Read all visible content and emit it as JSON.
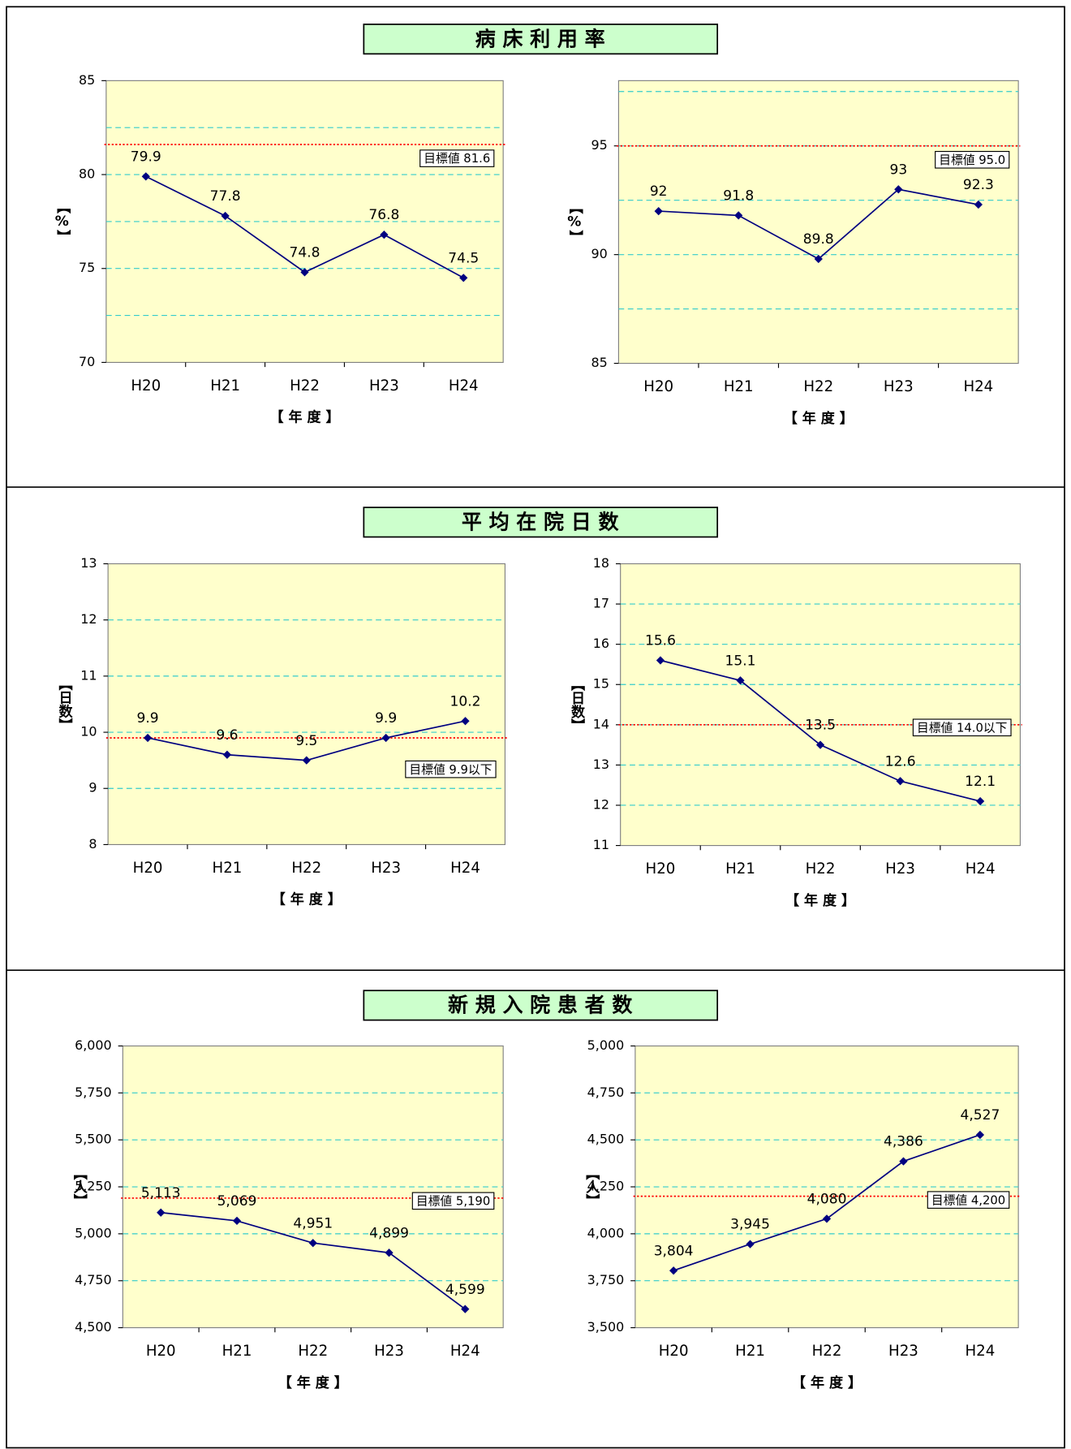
{
  "section_titles": [
    "病 床 利 用 率",
    "平 均 在 院 日 数",
    "新 規 入 院 患 者 数"
  ],
  "chart_data": [
    {
      "type": "line",
      "y_label": "【%】",
      "x_label": "【 年 度 】",
      "categories": [
        "H20",
        "H21",
        "H22",
        "H23",
        "H24"
      ],
      "values": [
        79.9,
        77.8,
        74.8,
        76.8,
        74.5
      ],
      "color": "#000080",
      "ylim": [
        70,
        85
      ],
      "yticks": [
        70,
        75,
        80,
        85
      ],
      "gridlines": [
        72.5,
        75,
        77.5,
        80,
        82.5
      ],
      "target": {
        "value": 81.6,
        "label": "目標値 81.6"
      }
    },
    {
      "type": "line",
      "y_label": "【%】",
      "x_label": "【 年 度 】",
      "categories": [
        "H20",
        "H21",
        "H22",
        "H23",
        "H24"
      ],
      "values": [
        92,
        91.8,
        89.8,
        93,
        92.3
      ],
      "color": "#000080",
      "ylim": [
        85,
        98
      ],
      "yticks": [
        85,
        90,
        95
      ],
      "gridlines": [
        87.5,
        90,
        92.5,
        95,
        97.5
      ],
      "target": {
        "value": 95.0,
        "label": "目標値 95.0"
      }
    },
    {
      "type": "line",
      "y_label": "【日数】",
      "x_label": "【 年 度 】",
      "categories": [
        "H20",
        "H21",
        "H22",
        "H23",
        "H24"
      ],
      "values": [
        9.9,
        9.6,
        9.5,
        9.9,
        10.2
      ],
      "color": "#000080",
      "ylim": [
        8,
        13
      ],
      "yticks": [
        8,
        9,
        10,
        11,
        12,
        13
      ],
      "gridlines": [
        9,
        10,
        11,
        12
      ],
      "target": {
        "value": 9.9,
        "label": "目標値 9.9以下"
      }
    },
    {
      "type": "line",
      "y_label": "【日数】",
      "x_label": "【 年 度 】",
      "categories": [
        "H20",
        "H21",
        "H22",
        "H23",
        "H24"
      ],
      "values": [
        15.6,
        15.1,
        13.5,
        12.6,
        12.1
      ],
      "color": "#000080",
      "ylim": [
        11,
        18
      ],
      "yticks": [
        11,
        12,
        13,
        14,
        15,
        16,
        17,
        18
      ],
      "gridlines": [
        12,
        13,
        14,
        15,
        16,
        17
      ],
      "target": {
        "value": 14.0,
        "label": "目標値 14.0以下"
      }
    },
    {
      "type": "line",
      "y_label": "【人】",
      "x_label": "【 年 度 】",
      "categories": [
        "H20",
        "H21",
        "H22",
        "H23",
        "H24"
      ],
      "values": [
        5113,
        5069,
        4951,
        4899,
        4599
      ],
      "value_labels": [
        "5,113",
        "5,069",
        "4,951",
        "4,899",
        "4,599"
      ],
      "color": "#000080",
      "ylim": [
        4500,
        6000
      ],
      "yticks": [
        {
          "value": 4500,
          "label": "4,500"
        },
        {
          "value": 4750,
          "label": "4,750"
        },
        {
          "value": 5000,
          "label": "5,000"
        },
        {
          "value": 5250,
          "label": "5,250"
        },
        {
          "value": 5500,
          "label": "5,500"
        },
        {
          "value": 5750,
          "label": "5,750"
        },
        {
          "value": 6000,
          "label": "6,000"
        }
      ],
      "gridlines": [
        4750,
        5000,
        5250,
        5500,
        5750
      ],
      "target": {
        "value": 5190,
        "label": "目標値 5,190"
      }
    },
    {
      "type": "line",
      "y_label": "【人】",
      "x_label": "【 年 度 】",
      "categories": [
        "H20",
        "H21",
        "H22",
        "H23",
        "H24"
      ],
      "values": [
        3804,
        3945,
        4080,
        4386,
        4527
      ],
      "value_labels": [
        "3,804",
        "3,945",
        "4,080",
        "4,386",
        "4,527"
      ],
      "color": "#000080",
      "ylim": [
        3500,
        5000
      ],
      "yticks": [
        {
          "value": 3500,
          "label": "3,500"
        },
        {
          "value": 3750,
          "label": "3,750"
        },
        {
          "value": 4000,
          "label": "4,000"
        },
        {
          "value": 4250,
          "label": "4,250"
        },
        {
          "value": 4500,
          "label": "4,500"
        },
        {
          "value": 4750,
          "label": "4,750"
        },
        {
          "value": 5000,
          "label": "5,000"
        }
      ],
      "gridlines": [
        3750,
        4000,
        4250,
        4500,
        4750
      ],
      "target": {
        "value": 4200,
        "label": "目標値 4,200"
      }
    }
  ]
}
